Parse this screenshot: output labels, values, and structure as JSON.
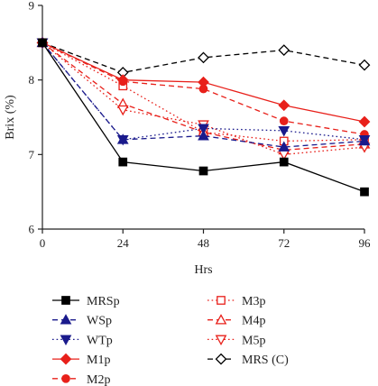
{
  "chart_data": {
    "type": "line",
    "xlabel": "Hrs",
    "ylabel": "Brix (%)",
    "x": [
      0,
      24,
      48,
      72,
      96
    ],
    "xticks": [
      "0",
      "24",
      "48",
      "72",
      "96"
    ],
    "yticks": [
      "6",
      "7",
      "8",
      "9"
    ],
    "xlim": [
      0,
      96
    ],
    "ylim": [
      6,
      9
    ],
    "legend_position": "bottom",
    "series": [
      {
        "name": "MRSp",
        "values": [
          8.5,
          6.9,
          6.78,
          6.9,
          6.5
        ],
        "color": "#000000",
        "dash": "solid",
        "marker": "square",
        "filled": true
      },
      {
        "name": "WSp",
        "values": [
          8.5,
          7.2,
          7.25,
          7.1,
          7.18
        ],
        "color": "#1a1a8c",
        "dash": "dashed",
        "marker": "triangle-up",
        "filled": true
      },
      {
        "name": "WTp",
        "values": [
          8.5,
          7.2,
          7.35,
          7.32,
          7.2
        ],
        "color": "#1a1a8c",
        "dash": "dotted",
        "marker": "triangle-down",
        "filled": true
      },
      {
        "name": "M1p",
        "values": [
          8.5,
          8.0,
          7.97,
          7.66,
          7.44
        ],
        "color": "#e8201a",
        "dash": "solid",
        "marker": "diamond",
        "filled": true
      },
      {
        "name": "M2p",
        "values": [
          8.5,
          7.98,
          7.88,
          7.45,
          7.27
        ],
        "color": "#e8201a",
        "dash": "dashed",
        "marker": "circle",
        "filled": true
      },
      {
        "name": "M3p",
        "values": [
          8.5,
          7.92,
          7.3,
          7.18,
          7.2
        ],
        "color": "#e8201a",
        "dash": "dotted",
        "marker": "square",
        "filled": false
      },
      {
        "name": "M4p",
        "values": [
          8.5,
          7.68,
          7.3,
          7.06,
          7.14
        ],
        "color": "#e8201a",
        "dash": "dashed",
        "marker": "triangle-up",
        "filled": false
      },
      {
        "name": "M5p",
        "values": [
          8.5,
          7.6,
          7.4,
          7.0,
          7.1
        ],
        "color": "#e8201a",
        "dash": "dotted",
        "marker": "triangle-down",
        "filled": false
      },
      {
        "name": "MRS (C)",
        "values": [
          8.5,
          8.1,
          8.3,
          8.4,
          8.2
        ],
        "color": "#000000",
        "dash": "dashed",
        "marker": "diamond",
        "filled": false
      }
    ]
  }
}
